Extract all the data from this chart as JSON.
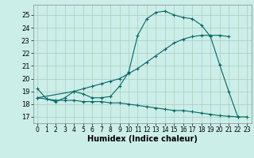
{
  "xlabel": "Humidex (Indice chaleur)",
  "bg_color": "#cceee8",
  "grid_color": "#aaddcc",
  "line_color": "#006666",
  "xlim": [
    -0.5,
    23.5
  ],
  "ylim": [
    16.5,
    25.8
  ],
  "xticks": [
    0,
    1,
    2,
    3,
    4,
    5,
    6,
    7,
    8,
    9,
    10,
    11,
    12,
    13,
    14,
    15,
    16,
    17,
    18,
    19,
    20,
    21,
    22,
    23
  ],
  "yticks": [
    17,
    18,
    19,
    20,
    21,
    22,
    23,
    24,
    25
  ],
  "line1_x": [
    0,
    1,
    2,
    3,
    4,
    5,
    6,
    7,
    8,
    9,
    10,
    11,
    12,
    13,
    14,
    15,
    16,
    17,
    18,
    19,
    20,
    21,
    22
  ],
  "line1_y": [
    19.2,
    18.4,
    18.2,
    18.5,
    19.0,
    18.8,
    18.5,
    18.5,
    18.6,
    19.4,
    20.5,
    23.4,
    24.7,
    25.2,
    25.3,
    25.0,
    24.8,
    24.7,
    24.2,
    23.3,
    21.1,
    19.0,
    17.0
  ],
  "line2_x": [
    0,
    4,
    5,
    6,
    7,
    8,
    9,
    10,
    11,
    12,
    13,
    14,
    15,
    16,
    17,
    18,
    19,
    20,
    21
  ],
  "line2_y": [
    18.5,
    19.0,
    19.2,
    19.4,
    19.6,
    19.8,
    20.0,
    20.4,
    20.8,
    21.3,
    21.8,
    22.3,
    22.8,
    23.1,
    23.3,
    23.4,
    23.4,
    23.4,
    23.3
  ],
  "line3_x": [
    0,
    1,
    2,
    3,
    4,
    5,
    6,
    7,
    8,
    9,
    10,
    11,
    12,
    13,
    14,
    15,
    16,
    17,
    18,
    19,
    20,
    21,
    22,
    23
  ],
  "line3_y": [
    18.5,
    18.4,
    18.3,
    18.3,
    18.3,
    18.2,
    18.2,
    18.2,
    18.1,
    18.1,
    18.0,
    17.9,
    17.8,
    17.7,
    17.6,
    17.5,
    17.5,
    17.4,
    17.3,
    17.2,
    17.1,
    17.05,
    17.0,
    17.0
  ]
}
